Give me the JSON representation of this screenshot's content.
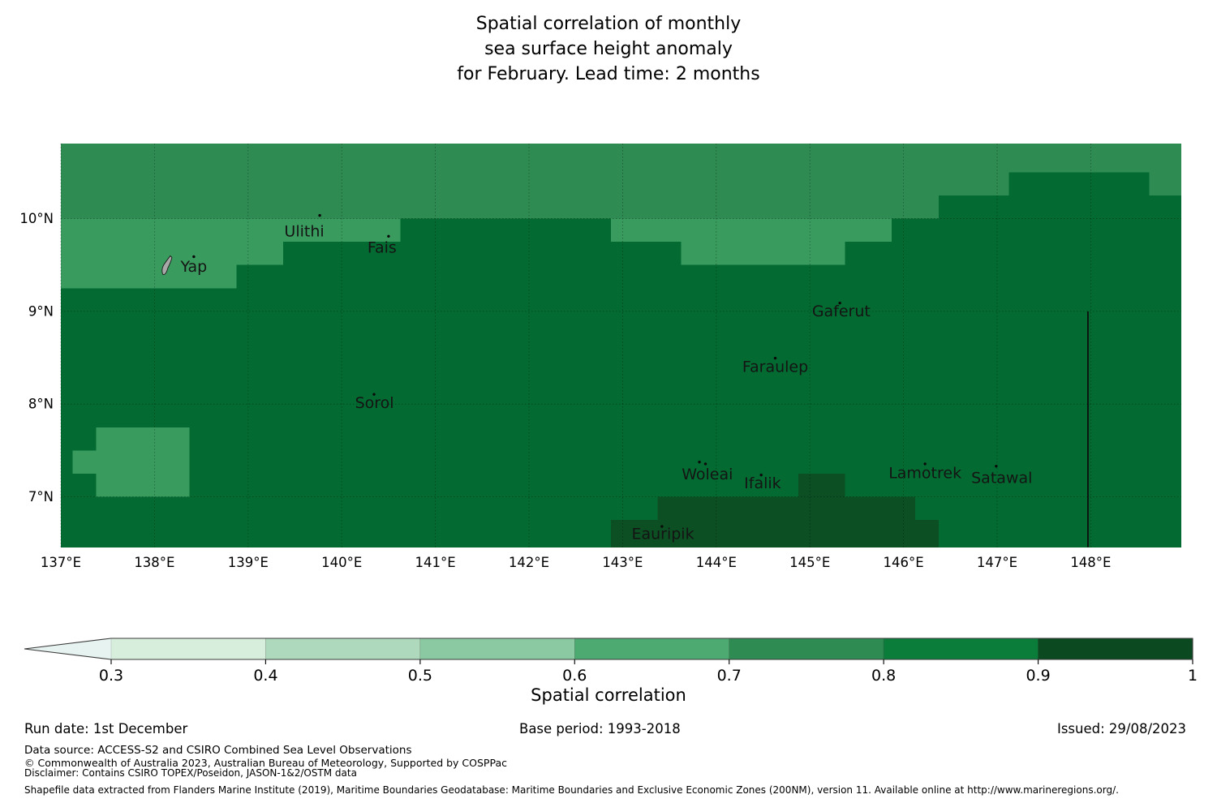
{
  "title": {
    "line1": "Spatial correlation of monthly",
    "line2": "sea surface height anomaly",
    "line3": "for February. Lead time: 2 months"
  },
  "chart_data": {
    "type": "heatmap",
    "description": "Map of spatial correlation of monthly sea surface height anomaly around Yap / Federated States of Micronesia",
    "map": {
      "lon_min": 137,
      "lon_max": 148.965,
      "lat_min": 6.455,
      "lat_max": 10.81,
      "x_ticks": [
        {
          "lon": 137,
          "label": "137°E"
        },
        {
          "lon": 138,
          "label": "138°E"
        },
        {
          "lon": 139,
          "label": "139°E"
        },
        {
          "lon": 140,
          "label": "140°E"
        },
        {
          "lon": 141,
          "label": "141°E"
        },
        {
          "lon": 142,
          "label": "142°E"
        },
        {
          "lon": 143,
          "label": "143°E"
        },
        {
          "lon": 144,
          "label": "144°E"
        },
        {
          "lon": 145,
          "label": "145°E"
        },
        {
          "lon": 146,
          "label": "146°E"
        },
        {
          "lon": 147,
          "label": "147°E"
        },
        {
          "lon": 148,
          "label": "148°E"
        }
      ],
      "y_ticks": [
        {
          "lat": 10,
          "label": "10°N"
        },
        {
          "lat": 9,
          "label": "9°N"
        },
        {
          "lat": 8,
          "label": "8°N"
        },
        {
          "lat": 7,
          "label": "7°N"
        }
      ],
      "colors": {
        "base": "#036b31",
        "medium": "#2e8b51",
        "light": "#3a9b5f",
        "darkest": "#0c4f23"
      },
      "base_value_range": "0.8-0.9",
      "regions": [
        {
          "color": "medium",
          "value_range": "0.7-0.8",
          "rects": [
            [
              137,
              10.0,
              148.965,
              10.81
            ]
          ]
        },
        {
          "color": "base",
          "value_range": "0.8-0.9",
          "rects": [
            [
              147.125,
              10.25,
              148.625,
              10.5
            ],
            [
              146.375,
              10.0,
              148.965,
              10.25
            ]
          ]
        },
        {
          "color": "light",
          "value_range": "0.6-0.7",
          "rects": [
            [
              137,
              9.75,
              140.625,
              10.0
            ],
            [
              142.875,
              9.75,
              145.875,
              10.0
            ],
            [
              137,
              9.5,
              139.375,
              9.75
            ],
            [
              143.625,
              9.5,
              145.375,
              9.75
            ],
            [
              137,
              9.25,
              138.875,
              9.5
            ],
            [
              137.375,
              7.0,
              138.375,
              7.75
            ],
            [
              137.125,
              7.25,
              137.375,
              7.5
            ]
          ]
        },
        {
          "color": "darkest",
          "value_range": "0.9-1.0",
          "rects": [
            [
              144.875,
              7.0,
              145.375,
              7.25
            ],
            [
              143.375,
              6.75,
              146.125,
              7.0
            ],
            [
              142.875,
              6.455,
              146.375,
              6.75
            ]
          ]
        }
      ],
      "boundary_line": {
        "lon": 147.97,
        "lat_from": 9.0,
        "lat_to": 6.455
      },
      "islands": [
        {
          "name": "Yap",
          "label_lon": 138.42,
          "label_lat": 9.485,
          "dots": [
            [
              138.42,
              9.59
            ]
          ],
          "shape": true
        },
        {
          "name": "Ulithi",
          "label_lon": 139.6,
          "label_lat": 9.865,
          "dots": [
            [
              139.765,
              10.035
            ]
          ]
        },
        {
          "name": "Fais",
          "label_lon": 140.43,
          "label_lat": 9.69,
          "dots": [
            [
              140.5,
              9.81
            ]
          ]
        },
        {
          "name": "Sorol",
          "label_lon": 140.35,
          "label_lat": 8.015,
          "dots": [
            [
              140.345,
              8.105
            ]
          ]
        },
        {
          "name": "Gaferut",
          "label_lon": 145.335,
          "label_lat": 9.005,
          "dots": [
            [
              145.32,
              9.09
            ]
          ]
        },
        {
          "name": "Faraulep",
          "label_lon": 144.63,
          "label_lat": 8.405,
          "dots": [
            [
              144.63,
              8.495
            ]
          ]
        },
        {
          "name": "Woleai",
          "label_lon": 143.905,
          "label_lat": 7.245,
          "dots": [
            [
              143.82,
              7.375
            ],
            [
              143.885,
              7.355
            ]
          ]
        },
        {
          "name": "Ifalik",
          "label_lon": 144.495,
          "label_lat": 7.15,
          "dots": [
            [
              144.48,
              7.235
            ]
          ]
        },
        {
          "name": "Lamotrek",
          "label_lon": 146.23,
          "label_lat": 7.26,
          "dots": [
            [
              146.23,
              7.355
            ]
          ]
        },
        {
          "name": "Satawal",
          "label_lon": 147.05,
          "label_lat": 7.205,
          "dots": [
            [
              146.99,
              7.33
            ]
          ]
        },
        {
          "name": "Eauripik",
          "label_lon": 143.43,
          "label_lat": 6.6,
          "dots": [
            [
              143.42,
              6.68
            ]
          ]
        }
      ]
    },
    "colorbar": {
      "title": "Spatial correlation",
      "labels": [
        "0.3",
        "0.4",
        "0.5",
        "0.6",
        "0.7",
        "0.8",
        "0.9",
        "1"
      ],
      "colors": [
        "#e6f3f1",
        "#d8eedd",
        "#afd9bc",
        "#8bc9a3",
        "#4dab72",
        "#2e8b51",
        "#0a7d3b",
        "#0b4a20"
      ],
      "has_under_arrow": true
    }
  },
  "footer": {
    "run_date": "Run date: 1st December",
    "base_period": "Base period: 1993-2018",
    "issued": "Issued: 29/08/2023",
    "data_source": "Data source: ACCESS-S2 and CSIRO Combined Sea Level Observations",
    "copyright": "© Commonwealth of Australia 2023, Australian Bureau of Meteorology, Supported by COSPPac",
    "disclaimer": "Disclaimer: Contains CSIRO TOPEX/Poseidon, JASON-1&2/OSTM data",
    "shapefile": "Shapefile data extracted from Flanders Marine Institute (2019), Maritime Boundaries Geodatabase: Maritime Boundaries and Exclusive Economic Zones (200NM), version 11. Available online at http://www.marineregions.org/."
  }
}
